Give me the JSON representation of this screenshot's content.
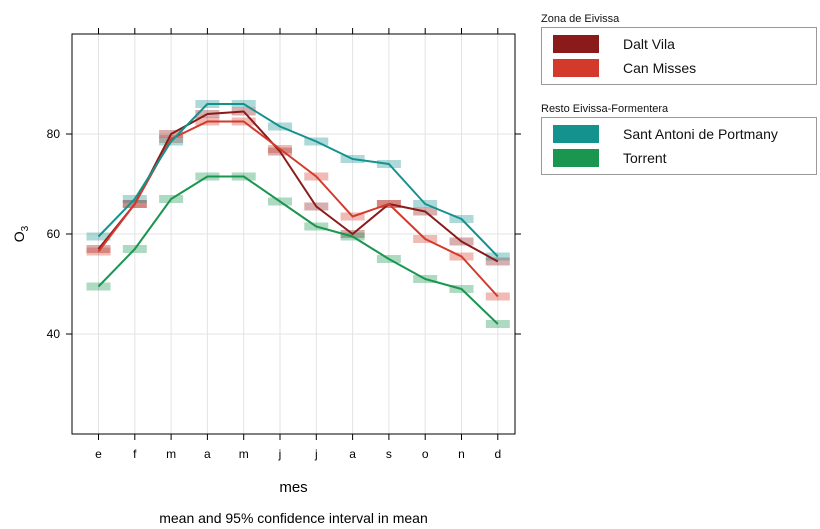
{
  "chart_data": {
    "type": "line",
    "xlabel": "mes",
    "ylabel": "O",
    "ylabel_sub": "3",
    "caption": "mean and 95% confidence interval in mean",
    "categories": [
      "e",
      "f",
      "m",
      "a",
      "m",
      "j",
      "j",
      "a",
      "s",
      "o",
      "n",
      "d"
    ],
    "ylim": [
      20,
      100
    ],
    "yticks": [
      40,
      60,
      80
    ],
    "grid": true,
    "legend_position": "right",
    "legend_groups": [
      {
        "title": "Zona de Eivissa",
        "series_index": [
          0,
          1
        ]
      },
      {
        "title": "Resto Eivissa-Formentera",
        "series_index": [
          2,
          3
        ]
      }
    ],
    "series": [
      {
        "name": "Dalt Vila",
        "color": "#8b1a1a",
        "values": [
          57,
          66,
          80,
          84,
          84.5,
          76.5,
          65.5,
          60,
          66,
          64.5,
          58.5,
          54.5
        ]
      },
      {
        "name": "Can Misses",
        "color": "#d33a2c",
        "values": [
          56.5,
          66,
          79,
          82.5,
          82.5,
          77,
          71.5,
          63.5,
          66,
          59,
          55.5,
          47.5
        ]
      },
      {
        "name": "Sant Antoni de Portmany",
        "color": "#13928e",
        "values": [
          59.5,
          67,
          78.5,
          86,
          86,
          81.5,
          78.5,
          75,
          74,
          66,
          63,
          55.5
        ]
      },
      {
        "name": "Torrent",
        "color": "#1a9650",
        "values": [
          49.5,
          57,
          67,
          71.5,
          71.5,
          66.5,
          61.5,
          59.5,
          55,
          51,
          49,
          42
        ]
      }
    ]
  }
}
